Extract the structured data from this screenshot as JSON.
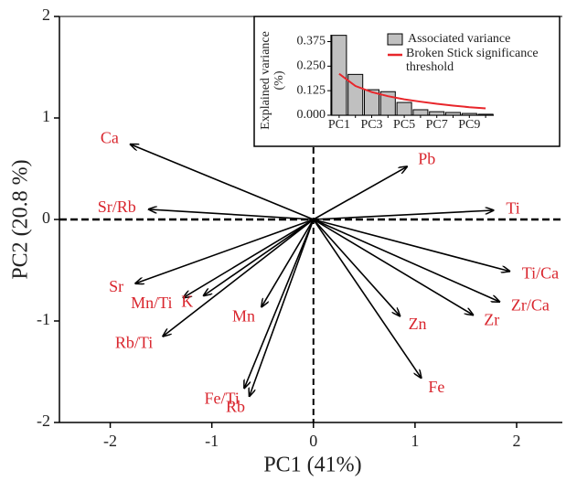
{
  "chart_data": [
    {
      "type": "biplot",
      "xlabel": "PC1 (41%)",
      "ylabel": "PC2 (20.8 %)",
      "labels": [
        "Ca",
        "Sr/Rb",
        "Sr",
        "Mn/Ti",
        "K",
        "Rb/Ti",
        "Mn",
        "Fe/Ti",
        "Rb",
        "Pb",
        "Ti",
        "Ti/Ca",
        "Zr/Ca",
        "Zr",
        "Zn",
        "Fe"
      ],
      "x": [
        -1.8,
        -1.62,
        -1.75,
        -1.28,
        -1.08,
        -1.48,
        -0.51,
        -0.68,
        -0.63,
        0.92,
        1.77,
        1.93,
        1.83,
        1.57,
        0.85,
        1.06
      ],
      "y": [
        0.74,
        0.1,
        -0.63,
        -0.77,
        -0.75,
        -1.15,
        -0.86,
        -1.66,
        -1.74,
        0.52,
        0.09,
        -0.51,
        -0.81,
        -0.94,
        -0.95,
        -1.56
      ],
      "color": "#d9262e",
      "xlim": [
        -2.5,
        2.45
      ],
      "ylim": [
        -2,
        2
      ],
      "xticks": [
        -2,
        -1,
        0,
        1,
        2
      ],
      "yticks": [
        -2,
        -1,
        0,
        1,
        2
      ]
    },
    {
      "type": "bar",
      "ylabel": [
        "Explained variance",
        "(%)"
      ],
      "categories": [
        "PC1",
        null,
        "PC3",
        null,
        "PC5",
        null,
        "PC7",
        null,
        "PC9",
        null
      ],
      "series": [
        {
          "name": "Associated variance",
          "color": "#c0c0c0",
          "values": [
            0.407,
            0.208,
            0.13,
            0.12,
            0.065,
            0.028,
            0.018,
            0.014,
            0.009,
            0.005
          ]
        },
        {
          "name": "Broken Stick significance threshold",
          "type": "line",
          "color": "#e8262b",
          "values": [
            0.211,
            0.149,
            0.118,
            0.097,
            0.081,
            0.069,
            0.058,
            0.049,
            0.041,
            0.035
          ]
        }
      ],
      "ylim": [
        0,
        0.41
      ],
      "yticks": [
        {
          "value": 0,
          "label": "0.000"
        },
        0.125,
        {
          "value": 0.25,
          "label": "0.250"
        },
        0.375
      ]
    }
  ]
}
